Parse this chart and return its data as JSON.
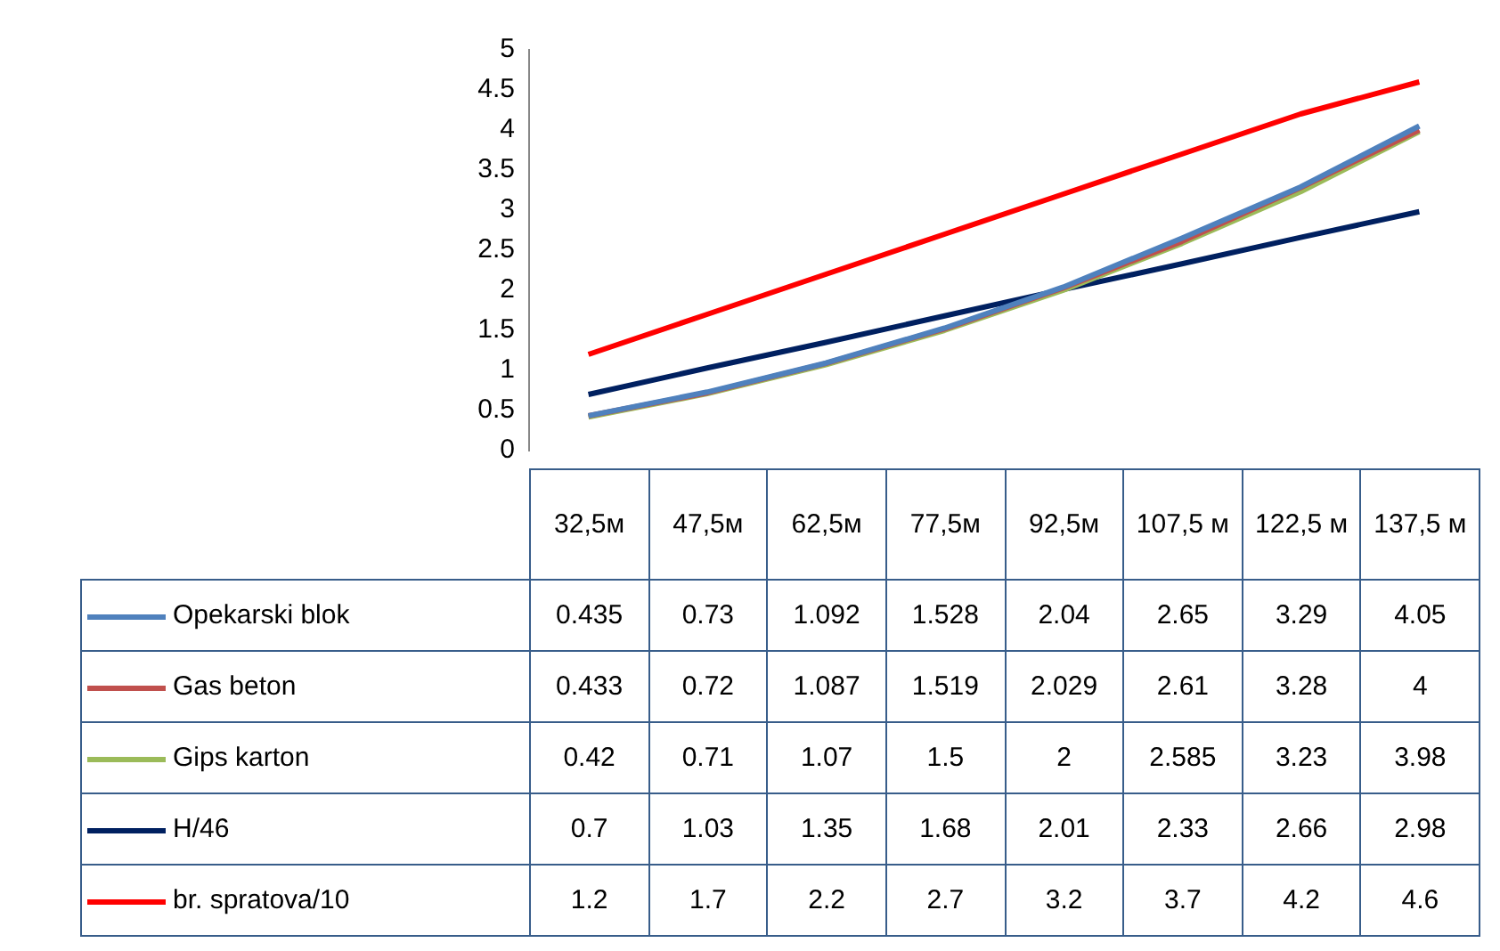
{
  "chart_data": {
    "type": "line",
    "categories": [
      "32,5м",
      "47,5м",
      "62,5м",
      "77,5м",
      "92,5м",
      "107,5 м",
      "122,5 м",
      "137,5 м"
    ],
    "series": [
      {
        "name": "Opekarski blok",
        "color": "#4f81bd",
        "values": [
          0.435,
          0.73,
          1.092,
          1.528,
          2.04,
          2.65,
          3.29,
          4.05
        ]
      },
      {
        "name": "Gas beton",
        "color": "#c0504d",
        "values": [
          0.433,
          0.72,
          1.087,
          1.519,
          2.029,
          2.61,
          3.28,
          4
        ]
      },
      {
        "name": "Gips karton",
        "color": "#9bbb59",
        "values": [
          0.42,
          0.71,
          1.07,
          1.5,
          2,
          2.585,
          3.23,
          3.98
        ]
      },
      {
        "name": "H/46",
        "color": "#002060",
        "values": [
          0.7,
          1.03,
          1.35,
          1.68,
          2.01,
          2.33,
          2.66,
          2.98
        ]
      },
      {
        "name": "br. spratova/10",
        "color": "#ff0000",
        "values": [
          1.2,
          1.7,
          2.2,
          2.7,
          3.2,
          3.7,
          4.2,
          4.6
        ]
      }
    ],
    "ylim": [
      0,
      5
    ],
    "yticks": [
      0,
      0.5,
      1,
      1.5,
      2,
      2.5,
      3,
      3.5,
      4,
      4.5,
      5
    ],
    "marker": "none",
    "data_labels": true,
    "legend": "bottom"
  }
}
